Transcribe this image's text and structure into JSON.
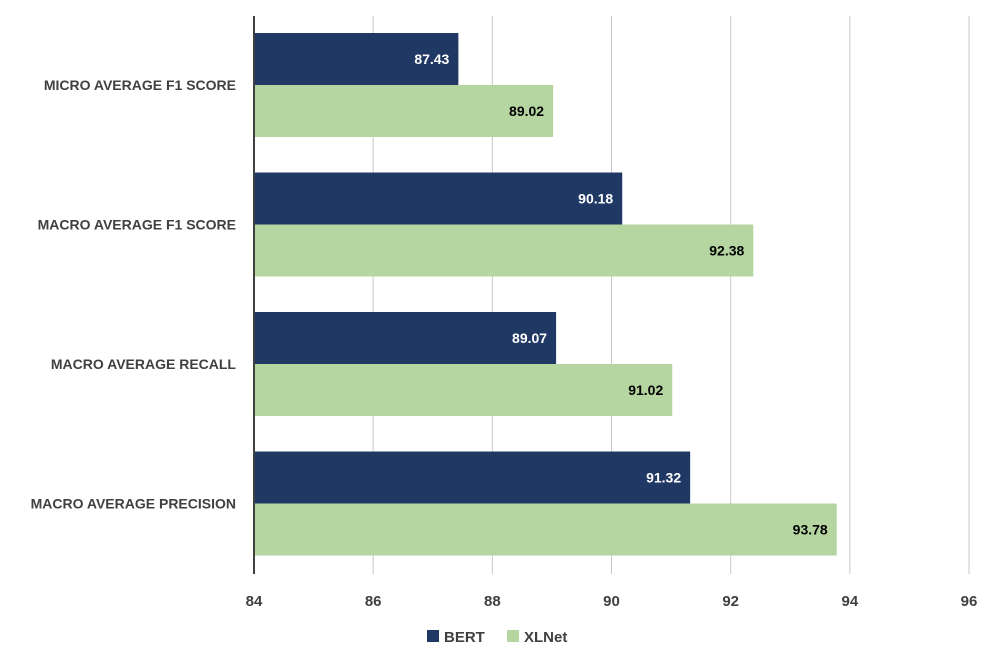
{
  "chart_data": {
    "type": "bar",
    "orientation": "horizontal",
    "categories": [
      "MICRO AVERAGE F1 SCORE",
      "MACRO AVERAGE F1 SCORE",
      "MACRO AVERAGE RECALL",
      "MACRO AVERAGE PRECISION"
    ],
    "series": [
      {
        "name": "BERT",
        "values": [
          87.43,
          90.18,
          89.07,
          91.32
        ],
        "color": "#203864",
        "label_color": "#ffffff"
      },
      {
        "name": "XLNet",
        "values": [
          89.02,
          92.38,
          91.02,
          93.78
        ],
        "color": "#b5d6a0",
        "label_color": "#000000"
      }
    ],
    "xlim": [
      84,
      96
    ],
    "xticks": [
      84,
      86,
      88,
      90,
      92,
      94,
      96
    ],
    "grid": "vertical",
    "legend_position": "bottom",
    "title": "",
    "xlabel": "",
    "ylabel": ""
  }
}
